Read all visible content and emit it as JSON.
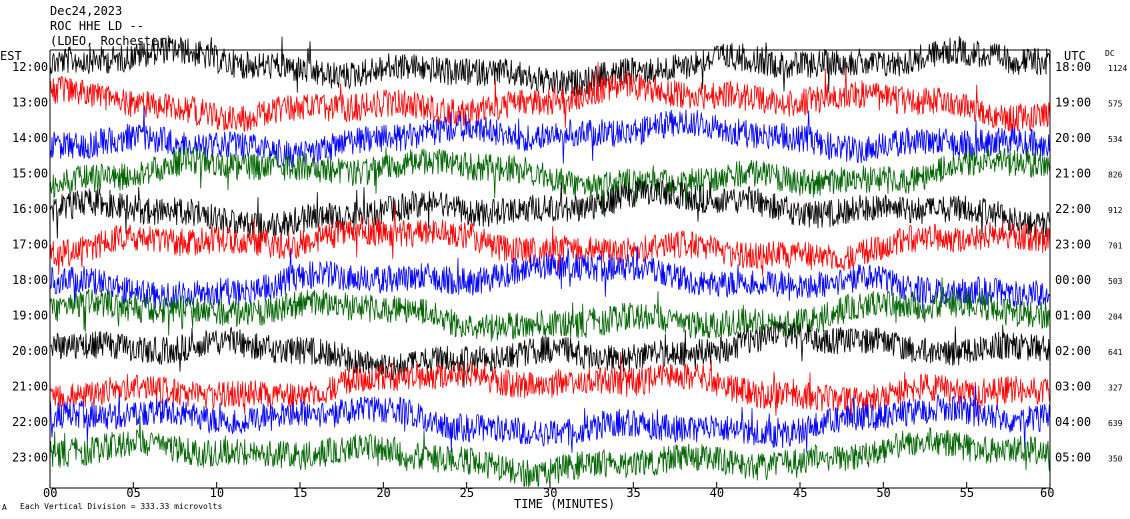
{
  "header": {
    "date": "Dec24,2023",
    "station": "ROC HHE LD --",
    "network": "(LDEO, Rochester)"
  },
  "chart_data": {
    "type": "line",
    "title": "",
    "xlabel": "TIME (MINUTES)",
    "left_axis_label": "EST",
    "right_axis_label": "UTC",
    "dc_label": "DC",
    "xlim": [
      0,
      60
    ],
    "x_ticks": [
      "00",
      "05",
      "10",
      "15",
      "20",
      "25",
      "30",
      "35",
      "40",
      "45",
      "50",
      "55",
      "60"
    ],
    "footer_note": "Each Vertical Division =  333.33 microvolts",
    "trace_colors": [
      "#000000",
      "#ff0000",
      "#0000ff",
      "#006400"
    ],
    "rows": [
      {
        "est": "12:00",
        "utc": "18:00",
        "dc": "1124",
        "color": "#000000"
      },
      {
        "est": "13:00",
        "utc": "19:00",
        "dc": "575",
        "color": "#ff0000"
      },
      {
        "est": "14:00",
        "utc": "20:00",
        "dc": "534",
        "color": "#0000ff"
      },
      {
        "est": "15:00",
        "utc": "21:00",
        "dc": "826",
        "color": "#006400"
      },
      {
        "est": "16:00",
        "utc": "22:00",
        "dc": "912",
        "color": "#000000"
      },
      {
        "est": "17:00",
        "utc": "23:00",
        "dc": "701",
        "color": "#ff0000"
      },
      {
        "est": "18:00",
        "utc": "00:00",
        "dc": "503",
        "color": "#0000ff"
      },
      {
        "est": "19:00",
        "utc": "01:00",
        "dc": "204",
        "color": "#006400"
      },
      {
        "est": "20:00",
        "utc": "02:00",
        "dc": "641",
        "color": "#000000"
      },
      {
        "est": "21:00",
        "utc": "03:00",
        "dc": "327",
        "color": "#ff0000"
      },
      {
        "est": "22:00",
        "utc": "04:00",
        "dc": "639",
        "color": "#0000ff"
      },
      {
        "est": "23:00",
        "utc": "05:00",
        "dc": "350",
        "color": "#006400"
      }
    ]
  }
}
